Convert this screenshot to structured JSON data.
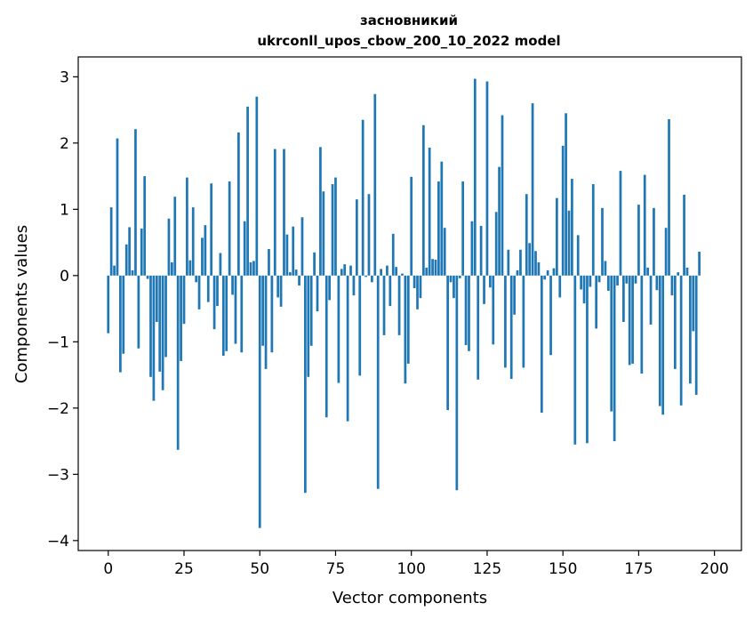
{
  "chart_data": {
    "type": "bar",
    "title": "засновникий",
    "subtitle": "ukrconll_upos_cbow_200_10_2022 model",
    "xlabel": "Vector components",
    "ylabel": "Components values",
    "xlim": [
      -9.9,
      208.9
    ],
    "ylim": [
      -4.15,
      3.3
    ],
    "xticks": [
      0,
      25,
      50,
      75,
      100,
      125,
      150,
      175,
      200
    ],
    "yticks": [
      -4,
      -3,
      -2,
      -1,
      0,
      1,
      2,
      3
    ],
    "color": "#1f77b4",
    "x_start": 0,
    "values": [
      -0.87,
      1.03,
      0.15,
      2.07,
      -1.46,
      -1.18,
      0.47,
      0.73,
      0.08,
      2.21,
      -1.1,
      0.71,
      1.5,
      -0.05,
      -1.53,
      -1.89,
      -0.7,
      -1.45,
      -1.73,
      -1.23,
      0.86,
      0.2,
      1.19,
      -2.63,
      -1.29,
      -0.73,
      1.48,
      0.23,
      1.03,
      -0.1,
      -0.51,
      0.57,
      0.76,
      -0.4,
      1.39,
      -0.81,
      -0.46,
      0.34,
      -1.21,
      -1.14,
      1.42,
      -0.29,
      -1.03,
      2.16,
      -1.16,
      0.82,
      2.55,
      0.2,
      0.22,
      2.7,
      -3.81,
      -1.06,
      -1.41,
      0.4,
      -1.16,
      1.91,
      -0.33,
      -0.47,
      1.91,
      0.62,
      0.05,
      0.74,
      0.09,
      -0.15,
      0.88,
      -3.28,
      -1.53,
      -1.06,
      0.35,
      -0.54,
      1.94,
      1.27,
      -2.14,
      -0.37,
      1.38,
      1.48,
      -1.62,
      0.1,
      0.17,
      -2.2,
      0.15,
      -0.3,
      1.15,
      -1.51,
      2.35,
      -0.02,
      1.23,
      -0.1,
      2.74,
      -3.22,
      0.1,
      -0.9,
      0.15,
      -0.46,
      0.63,
      0.13,
      -0.9,
      0.03,
      -1.63,
      -1.33,
      1.49,
      -0.19,
      -0.51,
      -0.34,
      2.27,
      0.12,
      1.93,
      0.25,
      0.24,
      1.42,
      1.72,
      0.72,
      -2.03,
      -0.1,
      -0.34,
      -3.24,
      -0.04,
      1.42,
      -1.05,
      -1.14,
      0.82,
      2.97,
      -1.57,
      0.75,
      -0.43,
      2.93,
      -0.18,
      -1.04,
      0.96,
      1.64,
      2.42,
      -1.39,
      0.39,
      -1.56,
      -0.59,
      0.08,
      0.39,
      -1.39,
      1.23,
      0.49,
      2.6,
      0.37,
      0.2,
      -2.07,
      -0.06,
      0.08,
      -1.2,
      0.11,
      1.17,
      -0.33,
      1.96,
      2.45,
      0.98,
      1.46,
      -2.55,
      0.61,
      -0.21,
      -0.42,
      -2.53,
      -0.17,
      1.38,
      -0.8,
      -0.1,
      1.02,
      0.22,
      -0.23,
      -2.05,
      -2.5,
      -0.15,
      1.58,
      -0.7,
      -0.12,
      -1.35,
      -1.33,
      -0.12,
      1.07,
      -1.48,
      1.52,
      0.12,
      -0.74,
      1.02,
      -0.22,
      -1.97,
      -2.1,
      0.72,
      2.36,
      -0.3,
      -1.41,
      0.05,
      -1.96,
      1.22,
      0.12,
      -1.63,
      -0.84,
      -1.8,
      0.36
    ]
  }
}
